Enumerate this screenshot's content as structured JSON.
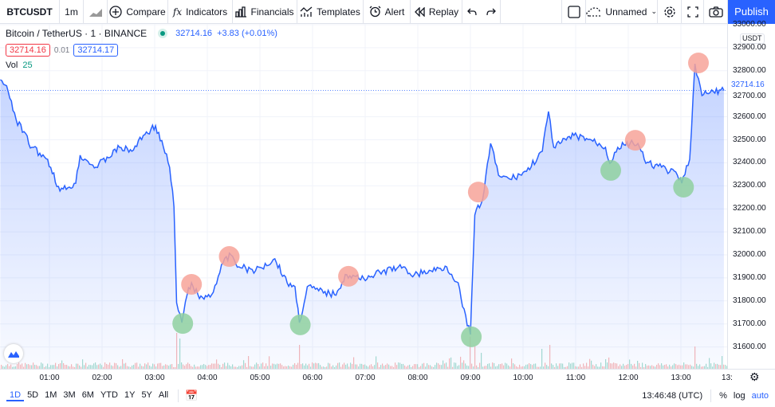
{
  "toolbar": {
    "symbol": "BTCUSDT",
    "interval": "1m",
    "compare": "Compare",
    "indicators": "Indicators",
    "financials": "Financials",
    "templates": "Templates",
    "alert": "Alert",
    "replay": "Replay",
    "layout_name": "Unnamed",
    "publish": "Publish"
  },
  "legend": {
    "title": "Bitcoin / TetherUS · 1 · BINANCE",
    "last": "32714.16",
    "change": "+3.83 (+0.01%)",
    "bid": "32714.16",
    "spread": "0.01",
    "ask": "32714.17",
    "vol_label": "Vol",
    "vol_value": "25"
  },
  "price_axis": {
    "currency": "USDT",
    "labels": [
      "33000.00",
      "32900.00",
      "32800.00",
      "32700.00",
      "32600.00",
      "32500.00",
      "32400.00",
      "32300.00",
      "32200.00",
      "32100.00",
      "32000.00",
      "31900.00",
      "31800.00",
      "31700.00",
      "31600.00"
    ],
    "current": "32714.16"
  },
  "time_axis": {
    "labels": [
      "01:00",
      "02:00",
      "03:00",
      "04:00",
      "05:00",
      "06:00",
      "07:00",
      "08:00",
      "09:00",
      "10:00",
      "11:00",
      "12:00",
      "13:00",
      "13:"
    ]
  },
  "bottom": {
    "ranges": [
      "1D",
      "5D",
      "1M",
      "3M",
      "6M",
      "YTD",
      "1Y",
      "5Y",
      "All"
    ],
    "active_range": "1D",
    "clock": "13:46:48 (UTC)",
    "percent": "%",
    "log": "log",
    "auto": "auto"
  },
  "colors": {
    "line": "#2962ff",
    "sell_marker": "#f7a399",
    "buy_marker": "#8fd0a0",
    "accent": "#2962ff",
    "down": "#f23645",
    "up": "#089981"
  },
  "chart_data": {
    "type": "line",
    "ylim": [
      31560,
      33020
    ],
    "points": [
      [
        "00:04",
        32761
      ],
      [
        "00:13",
        32709
      ],
      [
        "00:22",
        32588
      ],
      [
        "00:40",
        32467
      ],
      [
        "00:58",
        32415
      ],
      [
        "01:12",
        32277
      ],
      [
        "01:30",
        32311
      ],
      [
        "01:35",
        32433
      ],
      [
        "01:53",
        32381
      ],
      [
        "02:20",
        32467
      ],
      [
        "02:34",
        32450
      ],
      [
        "02:47",
        32519
      ],
      [
        "03:01",
        32561
      ],
      [
        "03:10",
        32467
      ],
      [
        "03:17",
        32381
      ],
      [
        "03:22",
        32208
      ],
      [
        "03:25",
        31792
      ],
      [
        "03:31",
        31706
      ],
      [
        "03:37",
        31827
      ],
      [
        "03:42",
        31879
      ],
      [
        "03:51",
        31810
      ],
      [
        "04:05",
        31827
      ],
      [
        "04:18",
        31965
      ],
      [
        "04:27",
        32000
      ],
      [
        "04:36",
        31948
      ],
      [
        "04:55",
        31931
      ],
      [
        "05:17",
        31983
      ],
      [
        "05:31",
        31879
      ],
      [
        "05:40",
        31862
      ],
      [
        "05:45",
        31706
      ],
      [
        "05:54",
        31862
      ],
      [
        "06:07",
        31844
      ],
      [
        "06:25",
        31827
      ],
      [
        "06:39",
        31914
      ],
      [
        "06:53",
        31896
      ],
      [
        "07:11",
        31914
      ],
      [
        "07:38",
        31948
      ],
      [
        "07:56",
        31914
      ],
      [
        "08:15",
        31931
      ],
      [
        "08:33",
        31948
      ],
      [
        "08:46",
        31879
      ],
      [
        "08:51",
        31775
      ],
      [
        "09:00",
        31654
      ],
      [
        "09:05",
        32173
      ],
      [
        "09:14",
        32242
      ],
      [
        "09:23",
        32484
      ],
      [
        "09:32",
        32346
      ],
      [
        "09:45",
        32329
      ],
      [
        "10:04",
        32363
      ],
      [
        "10:22",
        32450
      ],
      [
        "10:29",
        32623
      ],
      [
        "10:35",
        32467
      ],
      [
        "10:58",
        32519
      ],
      [
        "11:16",
        32502
      ],
      [
        "11:34",
        32467
      ],
      [
        "11:39",
        32398
      ],
      [
        "11:48",
        32467
      ],
      [
        "12:02",
        32484
      ],
      [
        "12:11",
        32484
      ],
      [
        "12:20",
        32398
      ],
      [
        "12:38",
        32381
      ],
      [
        "12:56",
        32346
      ],
      [
        "13:01",
        32311
      ],
      [
        "13:10",
        32415
      ],
      [
        "13:16",
        32830
      ],
      [
        "13:24",
        32692
      ],
      [
        "13:37",
        32709
      ],
      [
        "13:49",
        32714.16
      ]
    ],
    "sell_markers": [
      [
        "03:42",
        31872
      ],
      [
        "04:25",
        31993
      ],
      [
        "06:41",
        31907
      ],
      [
        "09:09",
        32273
      ],
      [
        "12:08",
        32498
      ],
      [
        "13:20",
        32834
      ]
    ],
    "buy_markers": [
      [
        "03:32",
        31702
      ],
      [
        "05:46",
        31696
      ],
      [
        "09:01",
        31644
      ],
      [
        "11:40",
        32367
      ],
      [
        "13:03",
        32294
      ]
    ]
  }
}
